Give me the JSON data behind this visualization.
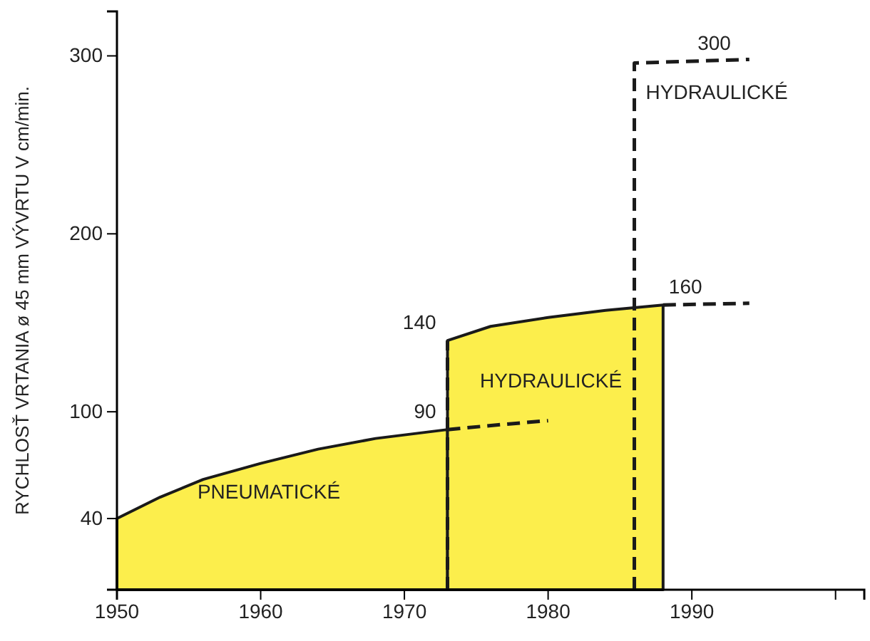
{
  "chart_data": {
    "type": "area",
    "ylabel": "RYCHLOSŤ VRTANIA ø 45 mm VÝVRTU V cm/min.",
    "xlim": [
      1950,
      2002
    ],
    "ylim": [
      0,
      325
    ],
    "xticks": [
      1950,
      1960,
      1970,
      1980,
      1990,
      {
        "value": 2000,
        "label": null
      }
    ],
    "yticks": [
      40,
      100,
      200,
      300
    ],
    "grid": false,
    "series": [
      {
        "name": "PNEUMATICKÉ",
        "color": "#fcee4c",
        "x": [
          1950,
          1953,
          1956,
          1960,
          1964,
          1968,
          1973
        ],
        "values": [
          40,
          52,
          62,
          71,
          79,
          85,
          90
        ]
      },
      {
        "type": "line",
        "line_style": "dashed",
        "color": "#1a1a1a",
        "x": [
          1973,
          1977,
          1980
        ],
        "values": [
          90,
          93,
          95
        ]
      },
      {
        "name": "HYDRAULICKÉ",
        "color": "#fcee4c",
        "x": [
          1973,
          1976,
          1980,
          1984,
          1988
        ],
        "values": [
          140,
          148,
          153,
          157,
          160
        ]
      },
      {
        "type": "line",
        "line_style": "dashed",
        "color": "#1a1a1a",
        "x": [
          1988,
          1994
        ],
        "values": [
          160,
          161
        ]
      },
      {
        "type": "line",
        "line_style": "dashed",
        "color": "#1a1a1a",
        "x": [
          1973,
          1973
        ],
        "values": [
          0,
          140
        ]
      },
      {
        "type": "line",
        "line_style": "dashed",
        "name": "HYDRAULICKÉ",
        "color": "#1a1a1a",
        "x": [
          1986,
          1986,
          1990,
          1994
        ],
        "values": [
          0,
          296,
          297,
          298
        ]
      }
    ],
    "annotations": [
      {
        "text": "90",
        "x": 1973,
        "y": 90
      },
      {
        "text": "140",
        "x": 1973,
        "y": 140
      },
      {
        "text": "160",
        "x": 1988,
        "y": 160
      },
      {
        "text": "300",
        "x": 1990,
        "y": 297
      }
    ]
  }
}
